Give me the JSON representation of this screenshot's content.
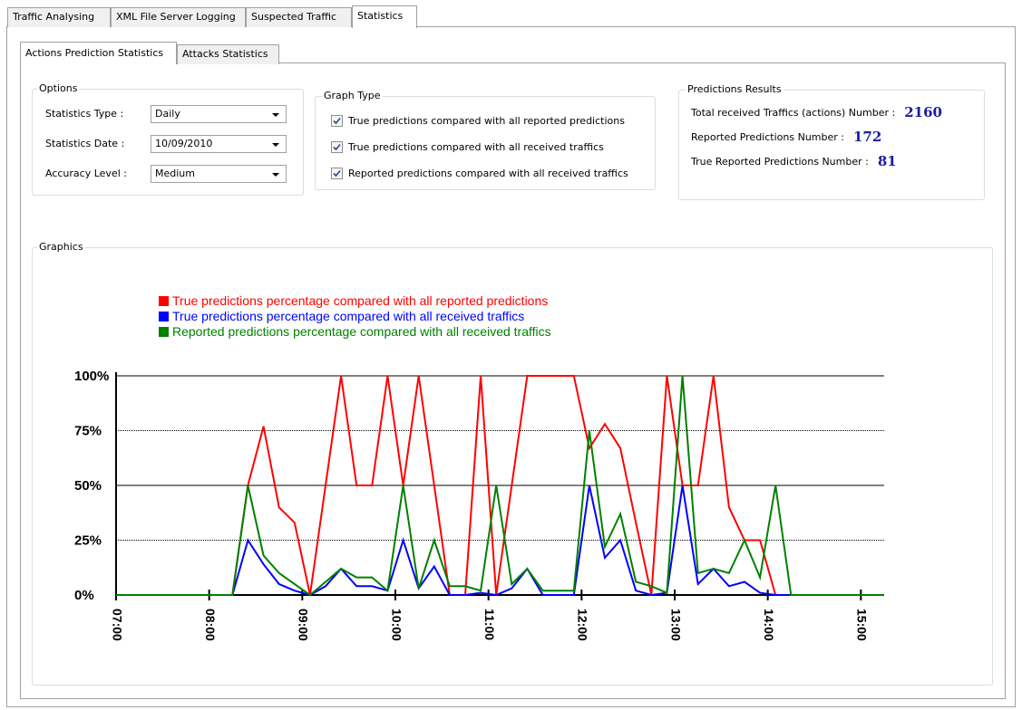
{
  "tabs": [
    "Traffic Analysing",
    "XML File Server Logging",
    "Suspected Traffic",
    "Statistics"
  ],
  "sub_tabs": [
    "Actions Prediction Statistics",
    "Attacks Statistics"
  ],
  "options": {
    "title": "Options",
    "fields": [
      {
        "label": "Statistics Type :",
        "value": "Daily"
      },
      {
        "label": "Statistics Date :",
        "value": "10/09/2010"
      },
      {
        "label": "Accuracy Level :",
        "value": "Medium"
      }
    ]
  },
  "graph_type": {
    "title": "Graph Type",
    "items": [
      {
        "label": "True predictions compared with all reported predictions",
        "checked": true
      },
      {
        "label": "True predictions compared with all received traffics",
        "checked": true
      },
      {
        "label": "Reported predictions compared with all received traffics",
        "checked": true
      }
    ]
  },
  "results": {
    "title": "Predictions Results",
    "items": [
      {
        "label": "Total received Traffics (actions) Number :",
        "value": 2160
      },
      {
        "label": "Reported Predictions Number :",
        "value": 172
      },
      {
        "label": "True Reported Predictions Number :",
        "value": 81
      }
    ]
  },
  "graphics_title": "Graphics",
  "chart_data": {
    "type": "line",
    "x": [
      "07:00",
      "08:15",
      "08:25",
      "08:35",
      "08:45",
      "08:55",
      "09:05",
      "09:15",
      "09:25",
      "09:35",
      "09:45",
      "09:55",
      "10:05",
      "10:15",
      "10:25",
      "10:35",
      "10:45",
      "10:55",
      "11:05",
      "11:15",
      "11:25",
      "11:35",
      "11:45",
      "11:55",
      "12:05",
      "12:15",
      "12:25",
      "12:35",
      "12:45",
      "12:55",
      "13:05",
      "13:15",
      "13:25",
      "13:35",
      "13:45",
      "13:55",
      "14:05",
      "14:15",
      "15:15"
    ],
    "series": [
      {
        "name": "True predictions percentage compared with all reported predictions",
        "color": "#ff0000",
        "values": [
          0,
          0,
          50,
          77,
          40,
          33,
          0,
          50,
          100,
          50,
          50,
          100,
          50,
          100,
          50,
          0,
          0,
          100,
          0,
          50,
          100,
          100,
          100,
          100,
          67,
          78,
          67,
          33,
          0,
          100,
          50,
          50,
          100,
          40,
          25,
          25,
          0,
          0,
          0
        ]
      },
      {
        "name": "True predictions percentage compared with all received traffics",
        "color": "#0000ff",
        "values": [
          0,
          0,
          25,
          14,
          5,
          2,
          0,
          4,
          12,
          4,
          4,
          2,
          25,
          3,
          13,
          0,
          0,
          1,
          0,
          3,
          12,
          0,
          0,
          0,
          50,
          17,
          25,
          2,
          0,
          1,
          50,
          5,
          12,
          4,
          6,
          1,
          0,
          0,
          0
        ]
      },
      {
        "name": "Reported predictions percentage compared with all received traffics",
        "color": "#008000",
        "values": [
          0,
          0,
          50,
          18,
          10,
          5,
          0,
          6,
          12,
          8,
          8,
          2,
          50,
          3,
          25,
          4,
          4,
          2,
          50,
          5,
          12,
          2,
          2,
          2,
          75,
          22,
          37,
          6,
          4,
          1,
          100,
          10,
          12,
          10,
          25,
          8,
          50,
          0,
          0
        ]
      }
    ],
    "xlim": [
      "07:00",
      "15:15"
    ],
    "xticks": [
      "07:00",
      "08:00",
      "09:00",
      "10:00",
      "11:00",
      "12:00",
      "13:00",
      "14:00",
      "15:00"
    ],
    "ylim": [
      0,
      100
    ],
    "yticks": [
      {
        "value": 0,
        "label": "0%"
      },
      {
        "value": 25,
        "label": "25%"
      },
      {
        "value": 50,
        "label": "50%"
      },
      {
        "value": 75,
        "label": "75%"
      },
      {
        "value": 100,
        "label": "100%"
      }
    ],
    "grid": true,
    "legend": "top-left"
  }
}
